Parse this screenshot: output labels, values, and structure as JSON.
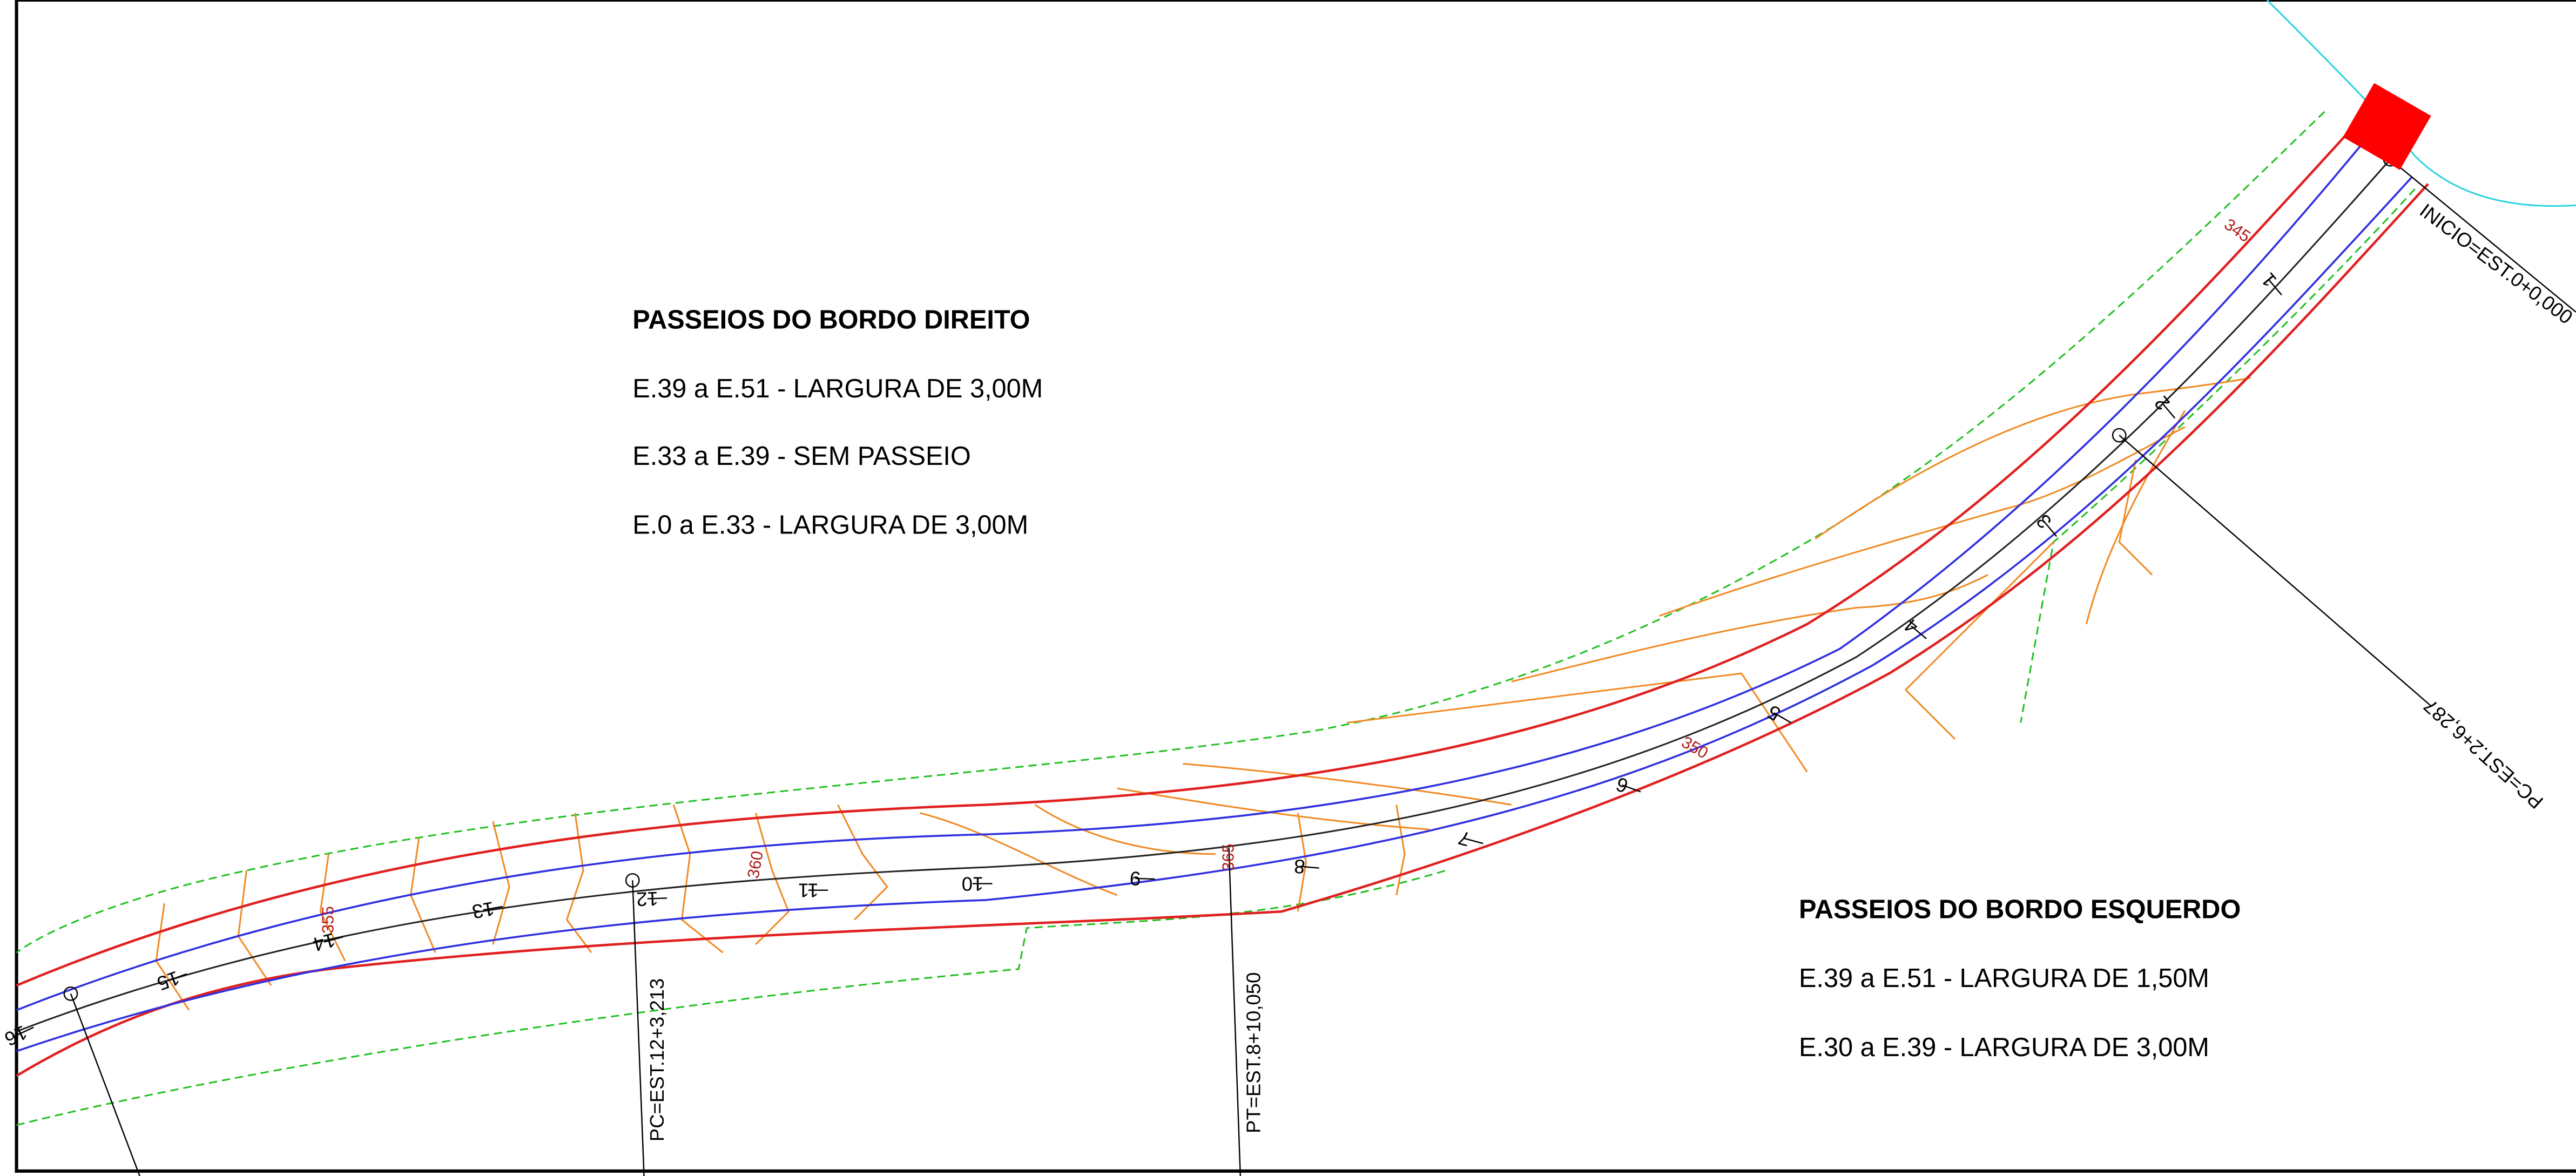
{
  "notes_right": {
    "title": "PASSEIOS DO BORDO DIREITO",
    "lines": [
      "E.39 a E.51 - LARGURA DE 3,00M",
      "E.33 a E.39 - SEM PASSEIO",
      "E.0 a E.33 - LARGURA DE 3,00M"
    ]
  },
  "notes_left": {
    "title": "PASSEIOS DO BORDO ESQUERDO",
    "lines": [
      "E.39 a E.51 - LARGURA DE 1,50M",
      "E.30 a E.39 - LARGURA DE 3,00M"
    ]
  },
  "stations": [
    "1",
    "2",
    "3",
    "4",
    "5",
    "6",
    "7",
    "8",
    "9",
    "10",
    "11",
    "12",
    "13",
    "14",
    "15",
    "16"
  ],
  "callouts": [
    "INICIO=EST.0+0,000",
    "PC=EST.2+6,287",
    "PC=EST.12+3,213",
    "PT=EST.8+10,050"
  ],
  "contour_labels": [
    "345",
    "350",
    "355",
    "360",
    "365"
  ]
}
